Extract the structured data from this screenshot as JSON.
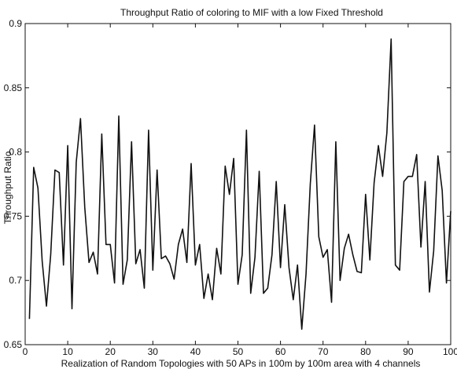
{
  "chart_data": {
    "type": "line",
    "title": "Throughput Ratio of coloring to MIF with a low Fixed Threshold",
    "xlabel": "Realization of Random Topologies with 50 APs in 100m by 100m area with 4 channels",
    "ylabel": "Throughput Ratio",
    "xlim": [
      0,
      100
    ],
    "ylim": [
      0.65,
      0.9
    ],
    "xticks": [
      "0",
      "10",
      "20",
      "30",
      "40",
      "50",
      "60",
      "70",
      "80",
      "90",
      "100"
    ],
    "yticks": [
      "0.65",
      "0.7",
      "0.75",
      "0.8",
      "0.85",
      "0.9"
    ],
    "grid": false,
    "legend": "none",
    "line_color": "#111111",
    "series": [
      {
        "x": [
          1,
          2,
          3,
          4,
          5,
          6,
          7,
          8,
          9,
          10,
          11,
          12,
          13,
          14,
          15,
          16,
          17,
          18,
          19,
          20,
          21,
          22,
          23,
          24,
          25,
          26,
          27,
          28,
          29,
          30,
          31,
          32,
          33,
          34,
          35,
          36,
          37,
          38,
          39,
          40,
          41,
          42,
          43,
          44,
          45,
          46,
          47,
          48,
          49,
          50,
          51,
          52,
          53,
          54,
          55,
          56,
          57,
          58,
          59,
          60,
          61,
          62,
          63,
          64,
          65,
          66,
          67,
          68,
          69,
          70,
          71,
          72,
          73,
          74,
          75,
          76,
          77,
          78,
          79,
          80,
          81,
          82,
          83,
          84,
          85,
          86,
          87,
          88,
          89,
          90,
          91,
          92,
          93,
          94,
          95,
          96,
          97,
          98,
          99,
          100
        ],
        "values": [
          0.67,
          0.788,
          0.772,
          0.715,
          0.68,
          0.72,
          0.786,
          0.784,
          0.712,
          0.805,
          0.678,
          0.792,
          0.826,
          0.757,
          0.714,
          0.722,
          0.705,
          0.814,
          0.728,
          0.728,
          0.698,
          0.828,
          0.697,
          0.716,
          0.808,
          0.713,
          0.724,
          0.694,
          0.817,
          0.708,
          0.786,
          0.717,
          0.719,
          0.713,
          0.701,
          0.728,
          0.74,
          0.714,
          0.791,
          0.712,
          0.728,
          0.686,
          0.705,
          0.685,
          0.725,
          0.705,
          0.789,
          0.767,
          0.795,
          0.697,
          0.72,
          0.817,
          0.69,
          0.718,
          0.785,
          0.69,
          0.694,
          0.72,
          0.777,
          0.71,
          0.759,
          0.71,
          0.685,
          0.712,
          0.662,
          0.705,
          0.775,
          0.821,
          0.734,
          0.718,
          0.724,
          0.683,
          0.808,
          0.7,
          0.725,
          0.736,
          0.72,
          0.707,
          0.706,
          0.767,
          0.716,
          0.776,
          0.805,
          0.781,
          0.815,
          0.888,
          0.712,
          0.708,
          0.777,
          0.781,
          0.781,
          0.798,
          0.726,
          0.777,
          0.691,
          0.723,
          0.797,
          0.77,
          0.698,
          0.754
        ]
      }
    ]
  }
}
